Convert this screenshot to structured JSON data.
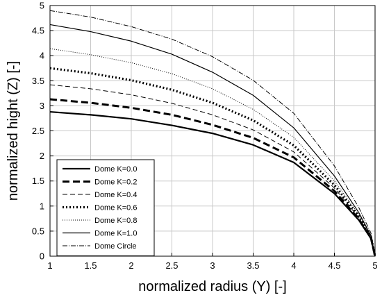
{
  "chart_data": {
    "type": "line",
    "title": "",
    "xlabel": "normalized radius (Y) [-]",
    "ylabel": "normalized hight (Z) [-]",
    "xlim": [
      1,
      5
    ],
    "ylim": [
      0,
      5
    ],
    "x_ticks": [
      "1",
      "1.5",
      "2",
      "2.5",
      "3",
      "3.5",
      "4",
      "4.5",
      "5"
    ],
    "y_ticks": [
      "0",
      "0.5",
      "1",
      "1.5",
      "2",
      "2.5",
      "3",
      "3.5",
      "4",
      "4.5",
      "5"
    ],
    "grid": true,
    "legend_position": "bottom-left",
    "x": [
      1,
      1.5,
      2,
      2.5,
      3,
      3.5,
      4,
      4.5,
      4.8,
      4.95,
      5
    ],
    "series": [
      {
        "name": "Dome K=0.0",
        "style": "solid-thick",
        "values": [
          2.88,
          2.82,
          2.74,
          2.61,
          2.45,
          2.22,
          1.87,
          1.25,
          0.72,
          0.35,
          0.0
        ]
      },
      {
        "name": "Dome K=0.2",
        "style": "dashed-thick",
        "values": [
          3.13,
          3.06,
          2.96,
          2.82,
          2.62,
          2.36,
          1.97,
          1.3,
          0.74,
          0.36,
          0.0
        ]
      },
      {
        "name": "Dome K=0.4",
        "style": "dashed-thin",
        "values": [
          3.42,
          3.34,
          3.22,
          3.05,
          2.82,
          2.52,
          2.08,
          1.36,
          0.77,
          0.37,
          0.0
        ]
      },
      {
        "name": "Dome K=0.6",
        "style": "dotted-thick",
        "values": [
          3.75,
          3.65,
          3.51,
          3.32,
          3.06,
          2.71,
          2.21,
          1.42,
          0.8,
          0.38,
          0.0
        ]
      },
      {
        "name": "Dome K=0.8",
        "style": "dotted-thin",
        "values": [
          4.14,
          4.02,
          3.86,
          3.64,
          3.34,
          2.93,
          2.37,
          1.5,
          0.83,
          0.39,
          0.0
        ]
      },
      {
        "name": "Dome K=1.0",
        "style": "solid-thin",
        "values": [
          4.62,
          4.48,
          4.29,
          4.03,
          3.67,
          3.21,
          2.56,
          1.6,
          0.87,
          0.41,
          0.0
        ]
      },
      {
        "name": "Dome Circle",
        "style": "dashdot",
        "values": [
          4.9,
          4.77,
          4.58,
          4.33,
          3.98,
          3.51,
          2.85,
          1.8,
          0.97,
          0.46,
          0.0
        ]
      }
    ]
  }
}
